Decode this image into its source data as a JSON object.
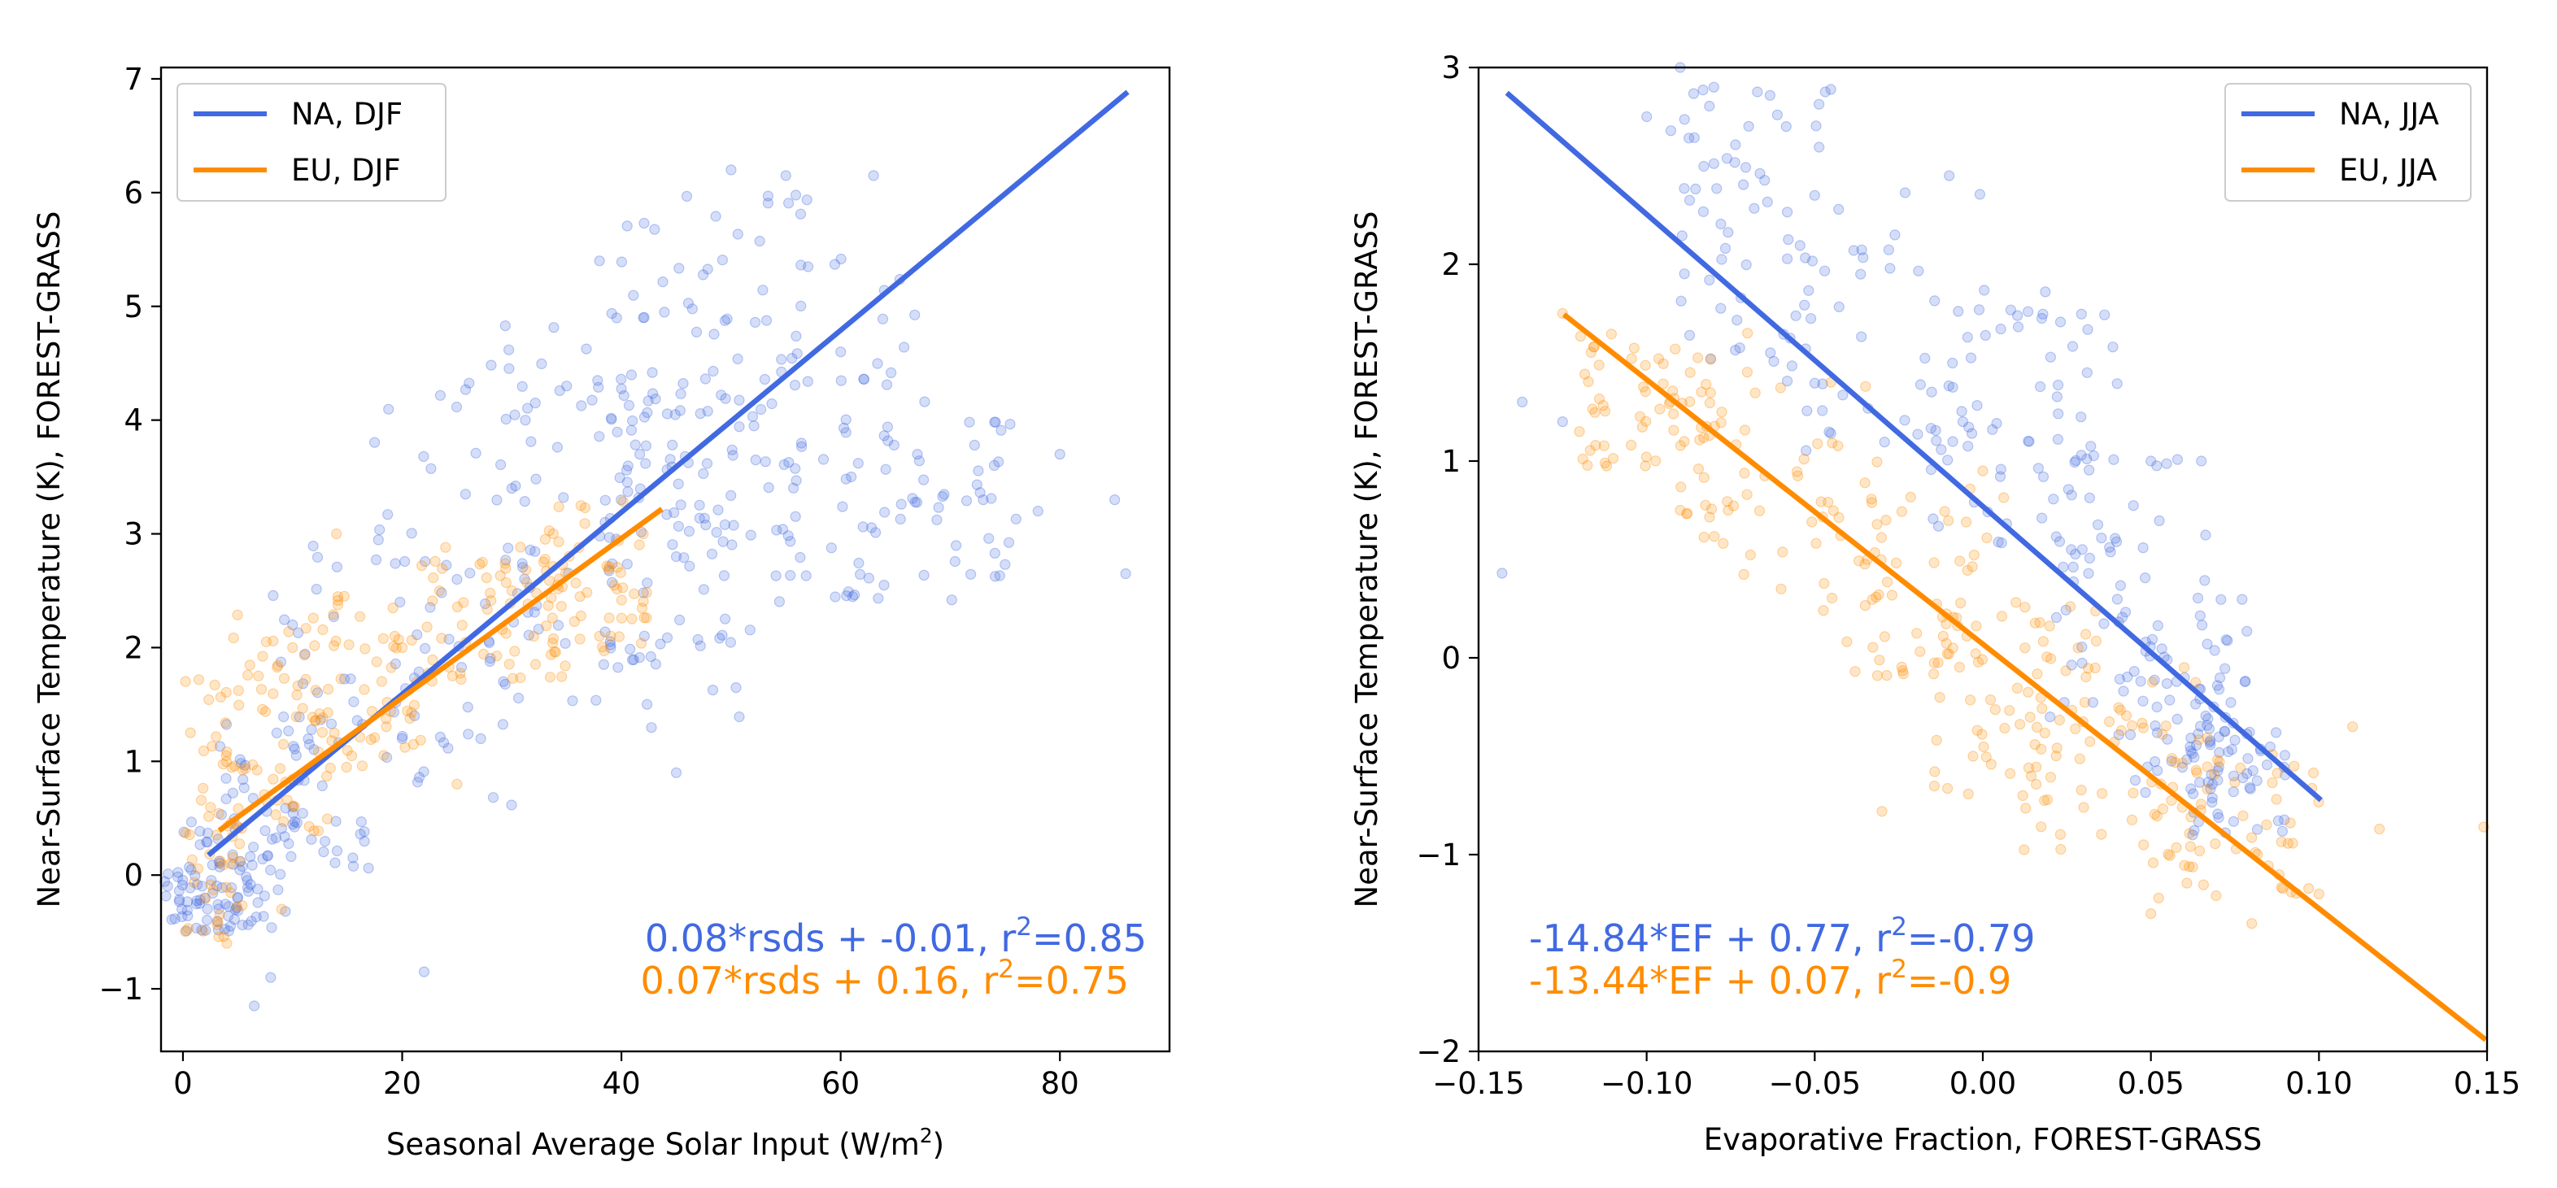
{
  "colors": {
    "na": "#4169e1",
    "eu": "#ff8c00"
  },
  "chart_data": [
    {
      "type": "scatter",
      "xlabel_main": "Seasonal Average Solar Input (W/m",
      "xlabel_sup": "2",
      "xlabel_tail": ")",
      "ylabel": "Near-Surface Temperature (K), FOREST-GRASS",
      "xlim": [
        -2,
        90
      ],
      "ylim": [
        -1.55,
        7.1
      ],
      "xticks": [
        0,
        20,
        40,
        60,
        80
      ],
      "xtick_labels": [
        "0",
        "20",
        "40",
        "60",
        "80"
      ],
      "yticks": [
        -1,
        0,
        1,
        2,
        3,
        4,
        5,
        6,
        7
      ],
      "ytick_labels": [
        "−1",
        "0",
        "1",
        "2",
        "3",
        "4",
        "5",
        "6",
        "7"
      ],
      "grid": false,
      "legend_position": "top-left",
      "legend": [
        "NA, DJF",
        "EU, DJF"
      ],
      "series": [
        {
          "name": "NA, DJF",
          "color": "#4169e1",
          "fit": {
            "slope": 0.08,
            "intercept": -0.01,
            "x_range": [
              2.5,
              86
            ]
          },
          "equation_main": "0.08*rsds + -0.01, r",
          "equation_sup": "2",
          "equation_tail": "=0.85",
          "sample_points": [
            [
              2,
              -0.2
            ],
            [
              6.5,
              -1.15
            ],
            [
              8,
              -0.9
            ],
            [
              10,
              2.2
            ],
            [
              20,
              1.2
            ],
            [
              25,
              2.6
            ],
            [
              30,
              3.4
            ],
            [
              35,
              4.3
            ],
            [
              38,
              5.4
            ],
            [
              42,
              4.9
            ],
            [
              45,
              2.8
            ],
            [
              50,
              6.2
            ],
            [
              55,
              6.15
            ],
            [
              60,
              4.6
            ],
            [
              63,
              6.15
            ],
            [
              67,
              3.7
            ],
            [
              73,
              3.3
            ],
            [
              78,
              3.2
            ],
            [
              80,
              3.7
            ],
            [
              85,
              3.3
            ],
            [
              86,
              2.65
            ],
            [
              45,
              0.9
            ],
            [
              22,
              -0.85
            ]
          ],
          "cloud": [
            [
              2,
              -0.2,
              11,
              0.6
            ],
            [
              5,
              0,
              11,
              1
            ],
            [
              10,
              0.7,
              14,
              1.4
            ],
            [
              20,
              1.8,
              24,
              2.6
            ],
            [
              30,
              3,
              26,
              3.2
            ],
            [
              40,
              3.8,
              22,
              3.2
            ],
            [
              48,
              4.5,
              18,
              3.2
            ],
            [
              58,
              4,
              20,
              3.2
            ],
            [
              45,
              2.8,
              14,
              3.2
            ],
            [
              68,
              3.2,
              16,
              1.6
            ]
          ]
        },
        {
          "name": "EU, DJF",
          "color": "#ff8c00",
          "fit": {
            "slope": 0.07,
            "intercept": 0.16,
            "x_range": [
              3.5,
              43.5
            ]
          },
          "equation_main": "0.07*rsds + 0.16, r",
          "equation_sup": "2",
          "equation_tail": "=0.75",
          "sample_points": [
            [
              4,
              -0.6
            ],
            [
              10,
              2.0
            ],
            [
              14,
              3.0
            ],
            [
              20,
              2.0
            ],
            [
              30,
              2.5
            ],
            [
              38,
              2.1
            ],
            [
              42,
              3.0
            ],
            [
              9,
              -0.3
            ],
            [
              25,
              0.8
            ]
          ],
          "cloud": [
            [
              3,
              0.6,
              6,
              2.4
            ],
            [
              9,
              1.3,
              10,
              2.0
            ],
            [
              17,
              1.7,
              12,
              1.6
            ],
            [
              28,
              2.3,
              14,
              1.2
            ],
            [
              38,
              2.6,
              10,
              1.4
            ]
          ]
        }
      ]
    },
    {
      "type": "scatter",
      "xlabel": "Evaporative Fraction, FOREST-GRASS",
      "ylabel": "Near-Surface Temperature (K), FOREST-GRASS",
      "xlim": [
        -0.15,
        0.15
      ],
      "ylim": [
        -2,
        3
      ],
      "xticks": [
        -0.15,
        -0.1,
        -0.05,
        0,
        0.05,
        0.1,
        0.15
      ],
      "xtick_labels": [
        "−0.15",
        "−0.10",
        "−0.05",
        "0.00",
        "0.05",
        "0.10",
        "0.15"
      ],
      "yticks": [
        -2,
        -1,
        0,
        1,
        2,
        3
      ],
      "ytick_labels": [
        "−2",
        "−1",
        "0",
        "1",
        "2",
        "3"
      ],
      "grid": false,
      "legend_position": "top-right",
      "legend": [
        "NA, JJA",
        "EU, JJA"
      ],
      "series": [
        {
          "name": "NA, JJA",
          "color": "#4169e1",
          "fit": {
            "slope": -14.84,
            "intercept": 0.77,
            "x_range": [
              -0.141,
              0.1
            ]
          },
          "equation_main": "-14.84*EF + 0.77, r",
          "equation_sup": "2",
          "equation_tail": "=-0.79",
          "sample_points": [
            [
              -0.143,
              0.43
            ],
            [
              -0.137,
              1.3
            ],
            [
              -0.125,
              1.2
            ],
            [
              -0.1,
              2.75
            ],
            [
              -0.09,
              3.0
            ],
            [
              -0.08,
              2.9
            ],
            [
              -0.05,
              2.35
            ],
            [
              -0.01,
              2.45
            ],
            [
              0.05,
              1.0
            ],
            [
              0.065,
              1.0
            ],
            [
              0.02,
              -0.3
            ],
            [
              0.06,
              -0.1
            ]
          ],
          "cloud": [
            [
              -0.07,
              2.2,
              0.05,
              1.4
            ],
            [
              -0.03,
              1.7,
              0.06,
              1.4
            ],
            [
              0.01,
              1.2,
              0.06,
              1.4
            ],
            [
              0.045,
              0.4,
              0.05,
              1.4
            ],
            [
              0.06,
              -0.2,
              0.04,
              1.0
            ],
            [
              0.075,
              -0.6,
              0.03,
              0.6
            ]
          ]
        },
        {
          "name": "EU, JJA",
          "color": "#ff8c00",
          "fit": {
            "slope": -13.44,
            "intercept": 0.07,
            "x_range": [
              -0.124,
              0.149
            ]
          },
          "equation_main": "-13.44*EF + 0.07, r",
          "equation_sup": "2",
          "equation_tail": "=-0.9",
          "sample_points": [
            [
              -0.125,
              1.75
            ],
            [
              -0.12,
              1.15
            ],
            [
              -0.09,
              0.75
            ],
            [
              -0.07,
              1.65
            ],
            [
              -0.06,
              0.35
            ],
            [
              -0.03,
              -0.78
            ],
            [
              0.0,
              0.95
            ],
            [
              0.05,
              -1.3
            ],
            [
              0.08,
              -1.35
            ],
            [
              0.1,
              -1.2
            ],
            [
              0.11,
              -0.35
            ],
            [
              0.118,
              -0.87
            ],
            [
              0.149,
              -0.86
            ]
          ],
          "cloud": [
            [
              -0.1,
              1.3,
              0.04,
              0.7
            ],
            [
              -0.06,
              1.0,
              0.06,
              1.2
            ],
            [
              -0.02,
              0.4,
              0.06,
              1.0
            ],
            [
              0.01,
              -0.2,
              0.05,
              1.0
            ],
            [
              0.04,
              -0.5,
              0.06,
              1.0
            ],
            [
              0.075,
              -0.85,
              0.05,
              0.8
            ]
          ]
        }
      ]
    }
  ]
}
